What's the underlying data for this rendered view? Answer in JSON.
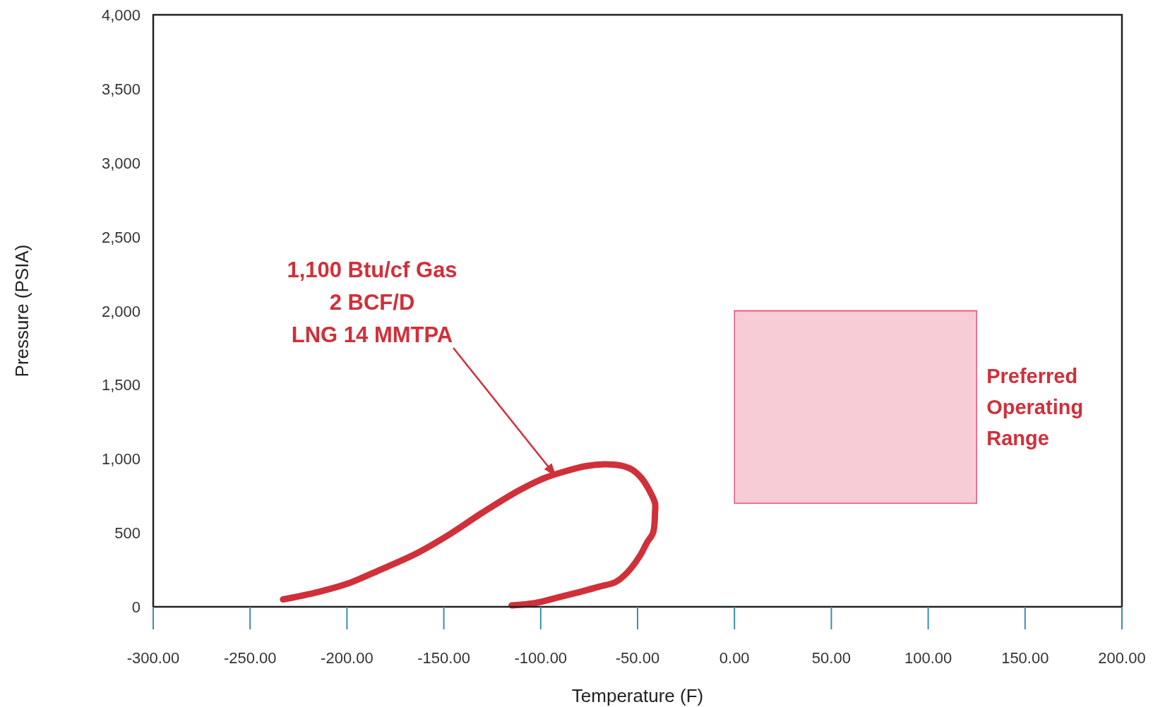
{
  "chart_data": {
    "type": "line",
    "xlabel": "Temperature (F)",
    "ylabel": "Pressure (PSIA)",
    "xlim": [
      -300,
      200
    ],
    "ylim": [
      0,
      4000
    ],
    "xticks": [
      {
        "value": -300,
        "label": "-300.00"
      },
      {
        "value": -250,
        "label": "-250.00"
      },
      {
        "value": -200,
        "label": "-200.00"
      },
      {
        "value": -150,
        "label": "-150.00"
      },
      {
        "value": -100,
        "label": "-100.00"
      },
      {
        "value": -50,
        "label": "-50.00"
      },
      {
        "value": 0,
        "label": "0.00"
      },
      {
        "value": 50,
        "label": "50.00"
      },
      {
        "value": 100,
        "label": "100.00"
      },
      {
        "value": 150,
        "label": "150.00"
      },
      {
        "value": 200,
        "label": "200.00"
      }
    ],
    "yticks": [
      0,
      500,
      {
        "value": 1000,
        "label": "1,000"
      },
      {
        "value": 1500,
        "label": "1,500"
      },
      {
        "value": 2000,
        "label": "2,000"
      },
      {
        "value": 2500,
        "label": "2,500"
      },
      {
        "value": 3000,
        "label": "3,000"
      },
      {
        "value": 3500,
        "label": "3,500"
      },
      {
        "value": 4000,
        "label": "4,000"
      }
    ],
    "grid": false,
    "marker": "none",
    "line_style": "solid",
    "series": [
      {
        "color": "#d0303a",
        "x": [
          -233,
          -215,
          -199,
          -182,
          -164,
          -147,
          -130,
          -111,
          -98,
          -88,
          -77,
          -67,
          -59,
          -53,
          -48,
          -44,
          -41,
          -41,
          -42,
          -45,
          -49,
          -55,
          -61,
          -70,
          -80,
          -92,
          -103,
          -115
        ],
        "values": [
          50,
          100,
          160,
          255,
          361,
          490,
          637,
          788,
          870,
          913,
          950,
          963,
          955,
          928,
          870,
          788,
          700,
          637,
          500,
          437,
          340,
          236,
          170,
          135,
          100,
          60,
          25,
          10
        ]
      },
      {
        "type": "line",
        "name": "Preferred Operating Range",
        "color": "#e8557a",
        "x": [
          0,
          125
        ],
        "values": [
          2000,
          2000
        ],
        "lower": [
          700,
          700
        ],
        "upper": [
          2000,
          2000
        ]
      }
    ],
    "annotations": [
      {
        "text": "1,100 Btu/cf Gas\n2 BCF/D\nLNG 14 MMTPA",
        "x": -92,
        "y": 880
      }
    ]
  }
}
